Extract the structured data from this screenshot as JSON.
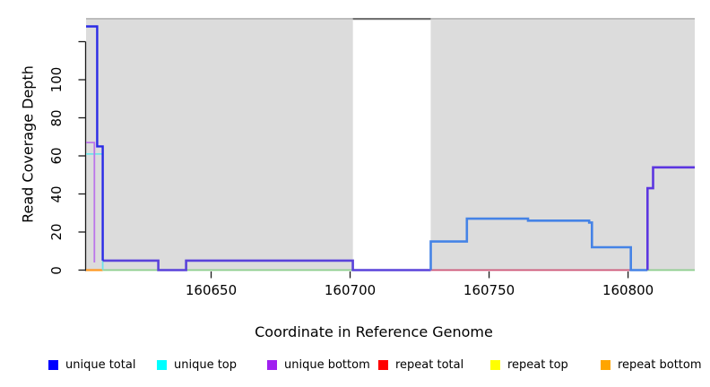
{
  "chart_data": {
    "type": "line",
    "subtype": "step-coverage-plot",
    "title": "",
    "xlabel": "Coordinate in Reference Genome",
    "ylabel": "Read Coverage Depth",
    "xlim": [
      160605,
      160824
    ],
    "ylim": [
      0,
      132
    ],
    "grid": false,
    "x_ticks": [
      160650,
      160700,
      160750,
      160800
    ],
    "y_ticks": [
      0,
      20,
      40,
      60,
      80,
      100,
      120
    ],
    "y_tick_labels": [
      "0",
      "20",
      "40",
      "60",
      "80",
      "100",
      ""
    ],
    "plot_background": "#dcdcdc",
    "page_background": "#ffffff",
    "axis_color": "#1a1a1a",
    "plot_top_edge_color": "#aaaaaa",
    "gap_region": {
      "x_start": 160701,
      "x_end": 160729,
      "fill": "#ffffff",
      "top_border_color": "#737373"
    },
    "legend_position": "bottom",
    "legend": [
      {
        "label": "unique total",
        "color": "#0000ff"
      },
      {
        "label": "unique top",
        "color": "#00ffff"
      },
      {
        "label": "unique bottom",
        "color": "#a020f0"
      },
      {
        "label": "repeat total",
        "color": "#ff0000"
      },
      {
        "label": "repeat top",
        "color": "#ffff00"
      },
      {
        "label": "repeat bottom",
        "color": "#ffa500"
      }
    ],
    "series": [
      {
        "name": "zero-line-green-left",
        "color": "#8ccc8c",
        "width": 1.8,
        "points": [
          [
            160611,
            0
          ],
          [
            160701,
            0
          ]
        ]
      },
      {
        "name": "zero-line-green-right",
        "color": "#8ccc8c",
        "width": 1.8,
        "points": [
          [
            160807,
            0
          ],
          [
            160824,
            0
          ]
        ]
      },
      {
        "name": "repeat-bottom-orange-zero",
        "color": "#ff9922",
        "width": 2.2,
        "points": [
          [
            160605,
            0
          ],
          [
            160611,
            0
          ]
        ]
      },
      {
        "name": "repeat-total-red-zero",
        "color": "#cc5576",
        "width": 1.8,
        "points": [
          [
            160729,
            0
          ],
          [
            160801,
            0
          ]
        ]
      },
      {
        "name": "unique-top-cyan-left",
        "color": "#70e4ea",
        "width": 1.8,
        "points": [
          [
            160605,
            61
          ],
          [
            160611,
            61
          ],
          [
            160611,
            0
          ]
        ]
      },
      {
        "name": "unique-bottom-violet-left",
        "color": "#bb74ea",
        "width": 1.8,
        "points": [
          [
            160605,
            67
          ],
          [
            160608,
            67
          ],
          [
            160608,
            4
          ]
        ]
      },
      {
        "name": "unique-total-bottom-overlap-low",
        "color": "#5a43da",
        "width": 2.6,
        "points": [
          [
            160611,
            5
          ],
          [
            160631,
            5
          ],
          [
            160631,
            0
          ],
          [
            160641,
            0
          ],
          [
            160641,
            5
          ],
          [
            160701,
            5
          ],
          [
            160701,
            0
          ],
          [
            160729,
            0
          ]
        ]
      },
      {
        "name": "unique-total-mid-blue-steps",
        "color": "#4583e6",
        "width": 2.6,
        "points": [
          [
            160729,
            0
          ],
          [
            160729,
            15
          ],
          [
            160742,
            15
          ],
          [
            160742,
            27
          ],
          [
            160764,
            27
          ],
          [
            160764,
            26
          ],
          [
            160786,
            26
          ],
          [
            160786,
            25
          ],
          [
            160787,
            25
          ],
          [
            160787,
            12
          ],
          [
            160801,
            12
          ],
          [
            160801,
            0
          ],
          [
            160807,
            0
          ]
        ]
      },
      {
        "name": "unique-total-left-spike",
        "color": "#2a2ae6",
        "width": 2.4,
        "points": [
          [
            160605,
            128
          ],
          [
            160609,
            128
          ],
          [
            160609,
            65
          ],
          [
            160611,
            65
          ],
          [
            160611,
            5
          ]
        ]
      },
      {
        "name": "unique-bottom-right-purple-steps",
        "color": "#5c36e0",
        "width": 2.6,
        "points": [
          [
            160807,
            0
          ],
          [
            160807,
            43
          ],
          [
            160809,
            43
          ],
          [
            160809,
            54
          ],
          [
            160824,
            54
          ]
        ]
      }
    ]
  }
}
